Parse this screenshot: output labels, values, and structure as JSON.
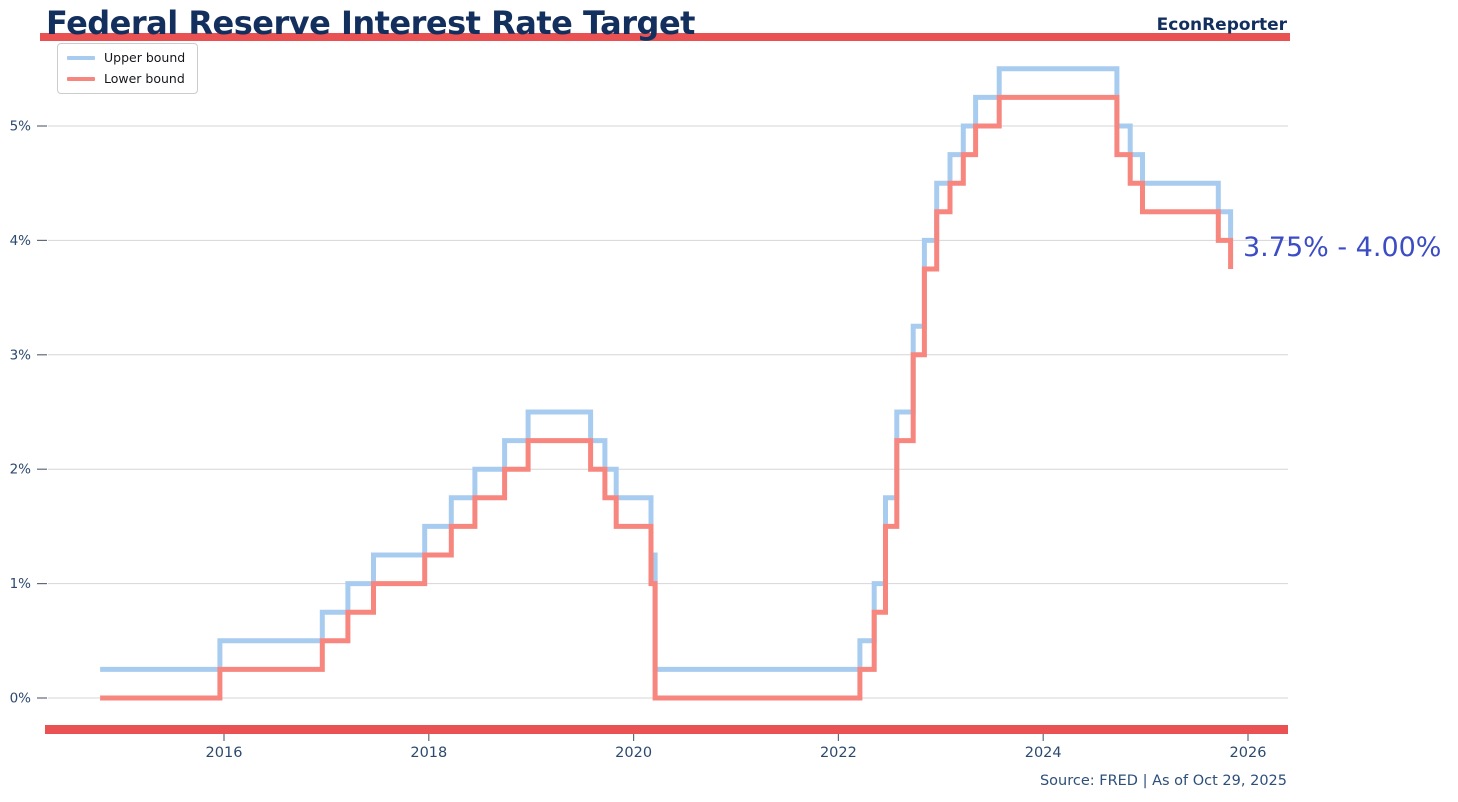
{
  "header": {
    "title": "Federal Reserve Interest Rate Target",
    "brand": "EconReporter"
  },
  "legend": {
    "items": [
      {
        "label": "Upper bound",
        "color": "#a8ccf0"
      },
      {
        "label": "Lower bound",
        "color": "#f7867f"
      }
    ]
  },
  "annotation": {
    "text": "3.75% - 4.00%"
  },
  "footer": {
    "source_text": "Source: FRED | As of Oct 29, 2025"
  },
  "colors": {
    "accent_bar": "#ea5153",
    "title_navy": "#132f5e",
    "annotation_blue": "#3b4cc4",
    "axis_label": "#2c4a6e",
    "source_text": "#2d4f79",
    "gridline": "#d6d6d6",
    "upper_bound_line": "#a8ccf0",
    "lower_bound_line": "#f7867f"
  },
  "chart_data": {
    "type": "line",
    "title": "Federal Reserve Interest Rate Target",
    "step": "post",
    "grid": "horizontal",
    "legend_position": "upper left",
    "xlabel": "",
    "ylabel": "",
    "x_range": [
      2014.55,
      2026.4
    ],
    "y_range": [
      0,
      5.75
    ],
    "x_ticks": [
      {
        "label": "2016",
        "value": 2016
      },
      {
        "label": "2018",
        "value": 2018
      },
      {
        "label": "2020",
        "value": 2020
      },
      {
        "label": "2022",
        "value": 2022
      },
      {
        "label": "2024",
        "value": 2024
      },
      {
        "label": "2026",
        "value": 2026
      }
    ],
    "y_ticks": [
      {
        "label": "0%",
        "value": 0
      },
      {
        "label": "1%",
        "value": 1
      },
      {
        "label": "2%",
        "value": 2
      },
      {
        "label": "3%",
        "value": 3
      },
      {
        "label": "4%",
        "value": 4
      },
      {
        "label": "5%",
        "value": 5
      }
    ],
    "end_label": "3.75% - 4.00%",
    "series": [
      {
        "name": "Upper bound",
        "color": "#a8ccf0",
        "points": [
          [
            2014.79,
            0.25
          ],
          [
            2015.96,
            0.5
          ],
          [
            2016.96,
            0.75
          ],
          [
            2017.21,
            1.0
          ],
          [
            2017.46,
            1.25
          ],
          [
            2017.96,
            1.5
          ],
          [
            2018.22,
            1.75
          ],
          [
            2018.45,
            2.0
          ],
          [
            2018.74,
            2.25
          ],
          [
            2018.97,
            2.5
          ],
          [
            2019.58,
            2.25
          ],
          [
            2019.72,
            2.0
          ],
          [
            2019.83,
            1.75
          ],
          [
            2020.17,
            1.25
          ],
          [
            2020.21,
            0.25
          ],
          [
            2022.21,
            0.5
          ],
          [
            2022.35,
            1.0
          ],
          [
            2022.46,
            1.75
          ],
          [
            2022.57,
            2.5
          ],
          [
            2022.73,
            3.25
          ],
          [
            2022.84,
            4.0
          ],
          [
            2022.96,
            4.5
          ],
          [
            2023.09,
            4.75
          ],
          [
            2023.22,
            5.0
          ],
          [
            2023.34,
            5.25
          ],
          [
            2023.57,
            5.5
          ],
          [
            2024.72,
            5.0
          ],
          [
            2024.85,
            4.75
          ],
          [
            2024.97,
            4.5
          ],
          [
            2025.71,
            4.25
          ],
          [
            2025.83,
            4.0
          ]
        ]
      },
      {
        "name": "Lower bound",
        "color": "#f7867f",
        "points": [
          [
            2014.79,
            0.0
          ],
          [
            2015.96,
            0.25
          ],
          [
            2016.96,
            0.5
          ],
          [
            2017.21,
            0.75
          ],
          [
            2017.46,
            1.0
          ],
          [
            2017.96,
            1.25
          ],
          [
            2018.22,
            1.5
          ],
          [
            2018.45,
            1.75
          ],
          [
            2018.74,
            2.0
          ],
          [
            2018.97,
            2.25
          ],
          [
            2019.58,
            2.0
          ],
          [
            2019.72,
            1.75
          ],
          [
            2019.83,
            1.5
          ],
          [
            2020.17,
            1.0
          ],
          [
            2020.21,
            0.0
          ],
          [
            2022.21,
            0.25
          ],
          [
            2022.35,
            0.75
          ],
          [
            2022.46,
            1.5
          ],
          [
            2022.57,
            2.25
          ],
          [
            2022.73,
            3.0
          ],
          [
            2022.84,
            3.75
          ],
          [
            2022.96,
            4.25
          ],
          [
            2023.09,
            4.5
          ],
          [
            2023.22,
            4.75
          ],
          [
            2023.34,
            5.0
          ],
          [
            2023.57,
            5.25
          ],
          [
            2024.72,
            4.75
          ],
          [
            2024.85,
            4.5
          ],
          [
            2024.97,
            4.25
          ],
          [
            2025.71,
            4.0
          ],
          [
            2025.83,
            3.75
          ]
        ]
      }
    ]
  }
}
